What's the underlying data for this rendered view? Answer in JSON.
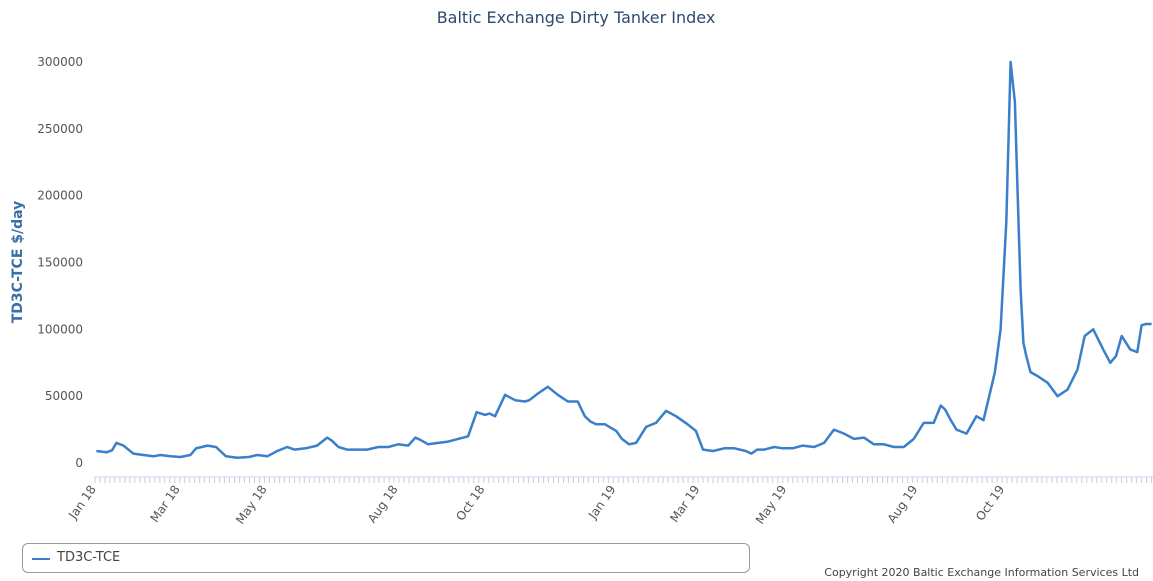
{
  "chart_data": {
    "type": "line",
    "title": "Baltic Exchange Dirty Tanker Index",
    "ylabel": "TD3C-TCE $/day",
    "xlabel": "",
    "ylim": [
      0,
      310000
    ],
    "yticks": [
      0,
      50000,
      100000,
      150000,
      200000,
      250000,
      300000
    ],
    "ytick_labels": [
      "0",
      "50000",
      "100000",
      "150000",
      "200000",
      "250000",
      "300000"
    ],
    "xtick_labels": [
      "Jan 18",
      "Mar 18",
      "May 18",
      "Aug 18",
      "Oct 18",
      "Jan 19",
      "Mar 19",
      "May 19",
      "Aug 19",
      "Oct 19"
    ],
    "grid": false,
    "legend_placement": "bottom",
    "series": [
      {
        "name": "TD3C-TCE",
        "color": "#3a7fc9",
        "x": [
          "2018-01-01",
          "2018-01-08",
          "2018-01-12",
          "2018-01-15",
          "2018-01-20",
          "2018-01-27",
          "2018-02-03",
          "2018-02-10",
          "2018-02-15",
          "2018-02-22",
          "2018-03-01",
          "2018-03-08",
          "2018-03-12",
          "2018-03-16",
          "2018-03-20",
          "2018-03-26",
          "2018-04-02",
          "2018-04-10",
          "2018-04-18",
          "2018-04-24",
          "2018-05-01",
          "2018-05-08",
          "2018-05-15",
          "2018-05-20",
          "2018-05-28",
          "2018-06-05",
          "2018-06-12",
          "2018-06-15",
          "2018-06-20",
          "2018-06-26",
          "2018-07-03",
          "2018-07-10",
          "2018-07-18",
          "2018-07-25",
          "2018-08-01",
          "2018-08-08",
          "2018-08-13",
          "2018-08-17",
          "2018-08-22",
          "2018-08-29",
          "2018-09-05",
          "2018-09-12",
          "2018-09-19",
          "2018-09-25",
          "2018-10-01",
          "2018-10-04",
          "2018-10-08",
          "2018-10-15",
          "2018-10-22",
          "2018-10-29",
          "2018-11-01",
          "2018-11-07",
          "2018-11-14",
          "2018-11-21",
          "2018-11-28",
          "2018-12-05",
          "2018-12-10",
          "2018-12-14",
          "2018-12-18",
          "2018-12-24",
          "2019-01-01",
          "2019-01-05",
          "2019-01-10",
          "2019-01-15",
          "2019-01-22",
          "2019-01-29",
          "2019-02-05",
          "2019-02-12",
          "2019-02-20",
          "2019-02-26",
          "2019-03-03",
          "2019-03-10",
          "2019-03-18",
          "2019-03-25",
          "2019-04-02",
          "2019-04-06",
          "2019-04-10",
          "2019-04-15",
          "2019-04-22",
          "2019-04-28",
          "2019-05-05",
          "2019-05-12",
          "2019-05-20",
          "2019-05-27",
          "2019-06-03",
          "2019-06-10",
          "2019-06-17",
          "2019-06-24",
          "2019-07-01",
          "2019-07-08",
          "2019-07-15",
          "2019-07-22",
          "2019-07-29",
          "2019-08-05",
          "2019-08-12",
          "2019-08-17",
          "2019-08-20",
          "2019-08-24",
          "2019-08-28",
          "2019-09-04",
          "2019-09-11",
          "2019-09-16",
          "2019-09-20",
          "2019-09-24",
          "2019-09-28",
          "2019-10-02",
          "2019-10-05",
          "2019-10-08",
          "2019-10-10",
          "2019-10-12",
          "2019-10-14",
          "2019-10-16",
          "2019-10-19",
          "2019-10-24",
          "2019-10-31",
          "2019-11-07",
          "2019-11-14",
          "2019-11-21",
          "2019-11-26",
          "2019-12-02",
          "2019-12-09",
          "2019-12-14",
          "2019-12-18",
          "2019-12-22",
          "2019-12-28",
          "2020-01-02",
          "2020-01-05",
          "2020-01-08",
          "2020-01-10",
          "2020-01-12"
        ],
        "values": [
          9000,
          8000,
          9500,
          15000,
          13000,
          7000,
          6000,
          5000,
          6000,
          5000,
          4500,
          6000,
          11000,
          12000,
          13000,
          12000,
          5000,
          4000,
          4500,
          6000,
          5000,
          9000,
          12000,
          10000,
          11000,
          13000,
          19000,
          17000,
          12000,
          10000,
          10000,
          10000,
          12000,
          12000,
          14000,
          13000,
          19000,
          17000,
          14000,
          15000,
          16000,
          18000,
          20000,
          38000,
          36000,
          37000,
          35000,
          51000,
          47000,
          46000,
          47000,
          52000,
          57000,
          51000,
          46000,
          46000,
          35000,
          31000,
          29000,
          29000,
          24000,
          18000,
          14000,
          15000,
          27000,
          30000,
          39000,
          35000,
          29000,
          24000,
          10000,
          9000,
          11000,
          11000,
          9000,
          7000,
          10000,
          10000,
          12000,
          11000,
          11000,
          13000,
          12000,
          15000,
          25000,
          22000,
          18000,
          19000,
          14000,
          14000,
          12000,
          12000,
          18000,
          30000,
          30000,
          43000,
          40000,
          32000,
          25000,
          22000,
          35000,
          32000,
          50000,
          68000,
          100000,
          180000,
          300000,
          270000,
          200000,
          130000,
          90000,
          80000,
          68000,
          65000,
          60000,
          50000,
          55000,
          70000,
          95000,
          100000,
          85000,
          75000,
          80000,
          95000,
          85000,
          83000,
          103000,
          104000,
          104000,
          104000
        ]
      }
    ]
  },
  "legend": {
    "label": "TD3C-TCE"
  },
  "footer": {
    "copyright": "Copyright 2020 Baltic Exchange Information Services Ltd"
  }
}
